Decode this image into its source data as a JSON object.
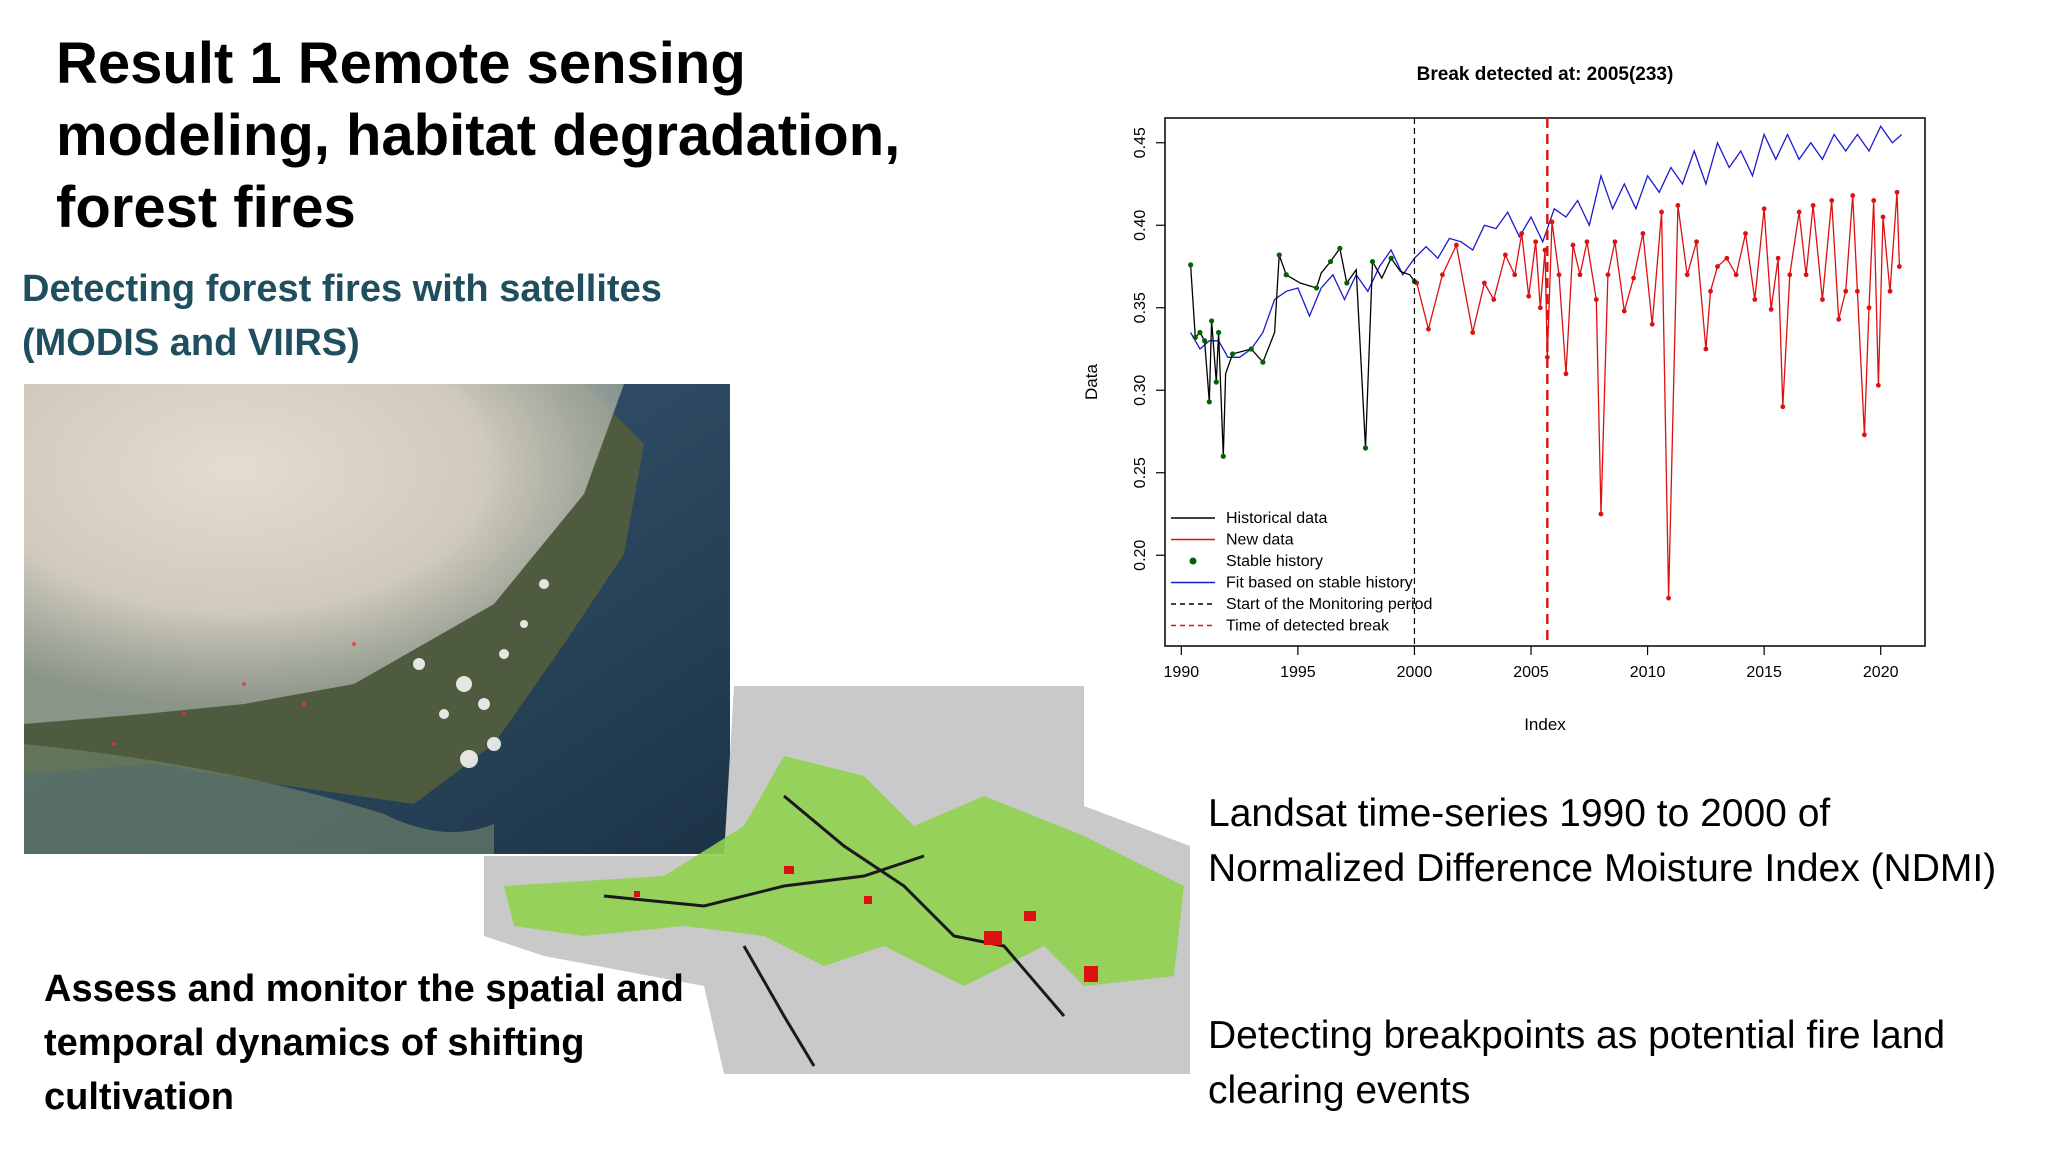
{
  "slide": {
    "title": "Result 1 Remote sensing modeling, habitat degradation, forest fires",
    "subtitle": "Detecting forest fires with satellites (MODIS and VIIRS)",
    "caption_left": "Assess and monitor the spatial and temporal dynamics of shifting cultivation",
    "text_right_1": "Landsat time-series 1990 to 2000 of Normalized Difference Moisture Index (NDMI)",
    "text_right_2": "Detecting breakpoints as potential fire land clearing events"
  },
  "images": {
    "satellite": "satellite image of smoke plumes over coastline",
    "landmap": "land cover map with shifting cultivation in green and red"
  },
  "colors": {
    "subtitle": "#1f4e5f",
    "historical": "#000000",
    "new_data": "#dd1111",
    "stable": "#006400",
    "fit": "#1a1ad0",
    "break": "#dd1111"
  },
  "chart_data": {
    "type": "line",
    "title": "Break detected at: 2005(233)",
    "xlabel": "Index",
    "ylabel": "Data",
    "xlim": [
      1989.3,
      2021.9
    ],
    "ylim": [
      0.145,
      0.465
    ],
    "xticks": [
      1990,
      1995,
      2000,
      2005,
      2010,
      2015,
      2020
    ],
    "yticks": [
      0.2,
      0.25,
      0.3,
      0.35,
      0.4,
      0.45
    ],
    "legend_position": "bottom-left",
    "legend": [
      {
        "label": "Historical data",
        "style": "line",
        "color": "#000000"
      },
      {
        "label": "New data",
        "style": "line",
        "color": "#dd1111"
      },
      {
        "label": "Stable history",
        "style": "point",
        "color": "#006400"
      },
      {
        "label": "Fit based on stable history",
        "style": "line",
        "color": "#1a1ad0"
      },
      {
        "label": "Start of the Monitoring period",
        "style": "dashed",
        "color": "#000000"
      },
      {
        "label": "Time of detected break",
        "style": "dashed",
        "color": "#dd1111"
      }
    ],
    "monitoring_start": 2000.0,
    "break_time": 2005.7,
    "series": [
      {
        "name": "Historical data",
        "color": "#000000",
        "x": [
          1990.4,
          1990.6,
          1990.8,
          1991.0,
          1991.2,
          1991.3,
          1991.5,
          1991.6,
          1991.8,
          1991.9,
          1992.2,
          1993.0,
          1993.5,
          1994.0,
          1994.2,
          1994.5,
          1995.1,
          1995.8,
          1996.0,
          1996.4,
          1996.8,
          1997.1,
          1997.5,
          1997.9,
          1998.2,
          1998.6,
          1999.0,
          1999.4,
          1999.8,
          2000.0
        ],
        "y": [
          0.376,
          0.332,
          0.335,
          0.33,
          0.293,
          0.342,
          0.305,
          0.335,
          0.26,
          0.31,
          0.322,
          0.325,
          0.317,
          0.335,
          0.382,
          0.37,
          0.365,
          0.362,
          0.371,
          0.378,
          0.386,
          0.365,
          0.373,
          0.265,
          0.378,
          0.368,
          0.38,
          0.372,
          0.37,
          0.366
        ]
      },
      {
        "name": "New data",
        "color": "#dd1111",
        "x": [
          2000.1,
          2000.6,
          2001.2,
          2001.8,
          2002.5,
          2003.0,
          2003.4,
          2003.9,
          2004.3,
          2004.6,
          2004.9,
          2005.2,
          2005.4,
          2005.6,
          2005.7,
          2005.9,
          2006.2,
          2006.5,
          2006.8,
          2007.1,
          2007.4,
          2007.8,
          2008.0,
          2008.3,
          2008.6,
          2009.0,
          2009.4,
          2009.8,
          2010.2,
          2010.6,
          2010.9,
          2011.3,
          2011.7,
          2012.1,
          2012.5,
          2012.7,
          2013.0,
          2013.4,
          2013.8,
          2014.2,
          2014.6,
          2015.0,
          2015.3,
          2015.6,
          2015.8,
          2016.1,
          2016.5,
          2016.8,
          2017.1,
          2017.5,
          2017.9,
          2018.2,
          2018.5,
          2018.8,
          2019.0,
          2019.3,
          2019.5,
          2019.7,
          2019.9,
          2020.1,
          2020.4,
          2020.7,
          2020.8
        ],
        "y": [
          0.365,
          0.337,
          0.37,
          0.388,
          0.335,
          0.365,
          0.355,
          0.382,
          0.37,
          0.395,
          0.357,
          0.39,
          0.35,
          0.385,
          0.32,
          0.402,
          0.37,
          0.31,
          0.388,
          0.37,
          0.39,
          0.355,
          0.225,
          0.37,
          0.39,
          0.348,
          0.368,
          0.395,
          0.34,
          0.408,
          0.174,
          0.412,
          0.37,
          0.39,
          0.325,
          0.36,
          0.375,
          0.38,
          0.37,
          0.395,
          0.355,
          0.41,
          0.349,
          0.38,
          0.29,
          0.37,
          0.408,
          0.37,
          0.412,
          0.355,
          0.415,
          0.343,
          0.36,
          0.418,
          0.36,
          0.273,
          0.35,
          0.415,
          0.303,
          0.405,
          0.36,
          0.42,
          0.375
        ]
      },
      {
        "name": "Fit based on stable history",
        "color": "#1a1ad0",
        "x": [
          1990.4,
          1990.8,
          1991.2,
          1991.6,
          1992.0,
          1992.5,
          1993.0,
          1993.5,
          1994.0,
          1994.5,
          1995.0,
          1995.5,
          1996.0,
          1996.5,
          1997.0,
          1997.5,
          1998.0,
          1998.5,
          1999.0,
          1999.5,
          2000.0,
          2000.5,
          2001.0,
          2001.5,
          2002.0,
          2002.5,
          2003.0,
          2003.5,
          2004.0,
          2004.5,
          2005.0,
          2005.5,
          2006.0,
          2006.5,
          2007.0,
          2007.5,
          2008.0,
          2008.5,
          2009.0,
          2009.5,
          2010.0,
          2010.5,
          2011.0,
          2011.5,
          2012.0,
          2012.5,
          2013.0,
          2013.5,
          2014.0,
          2014.5,
          2015.0,
          2015.5,
          2016.0,
          2016.5,
          2017.0,
          2017.5,
          2018.0,
          2018.5,
          2019.0,
          2019.5,
          2020.0,
          2020.5,
          2020.9
        ],
        "y": [
          0.335,
          0.325,
          0.33,
          0.33,
          0.32,
          0.32,
          0.325,
          0.335,
          0.355,
          0.36,
          0.362,
          0.345,
          0.362,
          0.37,
          0.355,
          0.37,
          0.36,
          0.375,
          0.385,
          0.37,
          0.38,
          0.387,
          0.38,
          0.392,
          0.39,
          0.385,
          0.4,
          0.398,
          0.408,
          0.393,
          0.405,
          0.39,
          0.41,
          0.405,
          0.415,
          0.4,
          0.43,
          0.41,
          0.425,
          0.41,
          0.43,
          0.42,
          0.435,
          0.425,
          0.445,
          0.425,
          0.45,
          0.435,
          0.445,
          0.43,
          0.455,
          0.44,
          0.455,
          0.44,
          0.45,
          0.44,
          0.455,
          0.445,
          0.455,
          0.445,
          0.46,
          0.45,
          0.455
        ]
      },
      {
        "name": "Stable history",
        "color": "#006400",
        "style": "points",
        "x": [
          1990.4,
          1990.6,
          1990.8,
          1991.0,
          1991.2,
          1991.3,
          1991.5,
          1991.6,
          1991.8,
          1992.2,
          1993.0,
          1993.5,
          1994.2,
          1994.5,
          1995.8,
          1996.4,
          1996.8,
          1997.1,
          1997.9,
          1998.2,
          1999.0,
          2000.0
        ],
        "y": [
          0.376,
          0.332,
          0.335,
          0.33,
          0.293,
          0.342,
          0.305,
          0.335,
          0.26,
          0.322,
          0.325,
          0.317,
          0.382,
          0.37,
          0.362,
          0.378,
          0.386,
          0.365,
          0.265,
          0.378,
          0.38,
          0.366
        ]
      }
    ]
  }
}
